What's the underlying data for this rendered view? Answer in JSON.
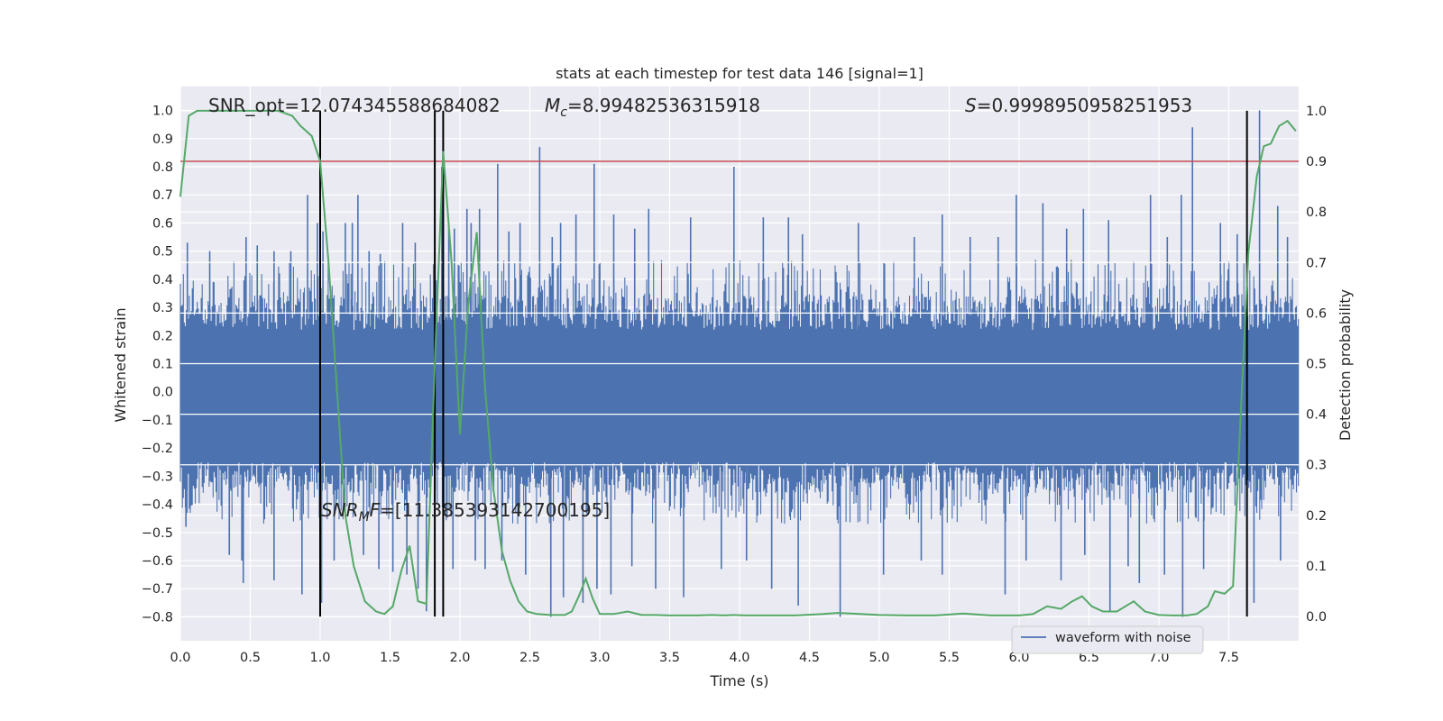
{
  "chart_data": {
    "type": "line",
    "title": "stats at each timestep for test data 146 [signal=1]",
    "xlabel": "Time (s)",
    "ylabel": "Whitened strain",
    "y2label": "Detection probability",
    "xlim": [
      0.0,
      8.0
    ],
    "ylim": [
      -0.885,
      1.085
    ],
    "y2lim": [
      -0.048,
      1.048
    ],
    "xticks": [
      "0.0",
      "0.5",
      "1.0",
      "1.5",
      "2.0",
      "2.5",
      "3.0",
      "3.5",
      "4.0",
      "4.5",
      "5.0",
      "5.5",
      "6.0",
      "6.5",
      "7.0",
      "7.5"
    ],
    "yticks": [
      "1.0",
      "0.9",
      "0.8",
      "0.7",
      "0.6",
      "0.5",
      "0.4",
      "0.3",
      "0.2",
      "0.1",
      "0.0",
      "−0.1",
      "−0.2",
      "−0.3",
      "−0.4",
      "−0.5",
      "−0.6",
      "−0.7",
      "−0.8"
    ],
    "y2ticks": [
      "1.0",
      "0.9",
      "0.8",
      "0.7",
      "0.6",
      "0.5",
      "0.4",
      "0.3",
      "0.2",
      "0.1",
      "0.0"
    ],
    "grid": true,
    "legend_position": "lower-right",
    "legend": [
      "waveform with noise"
    ],
    "annotations": {
      "snr_opt": "SNR_opt=12.074345588684082",
      "mc_symbol": "M",
      "mc_sub": "c",
      "mc_value": "=8.99482536315918",
      "s_symbol": "S",
      "s_value": "=0.9998950958251953",
      "snr_mf_symbol": "SNR",
      "snr_mf_sub": "M",
      "snr_mf_f": "F",
      "snr_mf_value": "=[11.385393142700195]"
    },
    "threshold_y2": 0.9,
    "threshold_color": "#c44e52",
    "vertical_lines_x": [
      1.0,
      1.82,
      1.88,
      7.63
    ],
    "vline_color": "#000000",
    "strain_series": {
      "name": "waveform with noise",
      "color": "#4c72b0",
      "envelope_outer": [
        0.3,
        -0.3
      ],
      "envelope_dense": [
        0.22,
        -0.25
      ],
      "spikes_up": [
        [
          0.05,
          0.53
        ],
        [
          0.21,
          0.5
        ],
        [
          0.47,
          0.55
        ],
        [
          0.55,
          0.52
        ],
        [
          0.67,
          0.5
        ],
        [
          0.79,
          0.5
        ],
        [
          0.91,
          0.7
        ],
        [
          0.98,
          0.6
        ],
        [
          1.02,
          0.57
        ],
        [
          1.18,
          0.6
        ],
        [
          1.23,
          0.6
        ],
        [
          1.27,
          0.7
        ],
        [
          1.35,
          0.5
        ],
        [
          1.43,
          0.49
        ],
        [
          1.59,
          0.6
        ],
        [
          1.68,
          0.53
        ],
        [
          1.87,
          0.8
        ],
        [
          1.92,
          0.6
        ],
        [
          1.96,
          0.58
        ],
        [
          2.05,
          0.65
        ],
        [
          2.08,
          0.6
        ],
        [
          2.14,
          0.65
        ],
        [
          2.27,
          0.81
        ],
        [
          2.35,
          0.57
        ],
        [
          2.43,
          0.6
        ],
        [
          2.57,
          0.87
        ],
        [
          2.66,
          0.55
        ],
        [
          2.72,
          0.6
        ],
        [
          2.83,
          0.63
        ],
        [
          2.96,
          0.81
        ],
        [
          3.1,
          0.63
        ],
        [
          3.25,
          0.58
        ],
        [
          3.35,
          0.65
        ],
        [
          3.65,
          0.62
        ],
        [
          3.96,
          0.8
        ],
        [
          4.17,
          0.62
        ],
        [
          4.35,
          0.62
        ],
        [
          4.45,
          0.56
        ],
        [
          4.85,
          0.6
        ],
        [
          5.25,
          0.55
        ],
        [
          5.45,
          0.63
        ],
        [
          5.65,
          0.55
        ],
        [
          5.85,
          0.55
        ],
        [
          5.98,
          0.7
        ],
        [
          6.17,
          0.67
        ],
        [
          6.34,
          0.58
        ],
        [
          6.46,
          0.65
        ],
        [
          6.64,
          0.61
        ],
        [
          6.94,
          0.7
        ],
        [
          7.06,
          0.55
        ],
        [
          7.16,
          0.7
        ],
        [
          7.24,
          0.94
        ],
        [
          7.44,
          0.6
        ],
        [
          7.56,
          0.56
        ],
        [
          7.72,
          1.0
        ],
        [
          7.85,
          0.66
        ],
        [
          7.92,
          0.55
        ]
      ],
      "spikes_down": [
        [
          0.04,
          -0.48
        ],
        [
          0.35,
          -0.58
        ],
        [
          0.44,
          -0.6
        ],
        [
          0.45,
          -0.68
        ],
        [
          0.67,
          -0.67
        ],
        [
          0.87,
          -0.72
        ],
        [
          1.01,
          -0.75
        ],
        [
          1.1,
          -0.6
        ],
        [
          1.31,
          -0.58
        ],
        [
          1.42,
          -0.63
        ],
        [
          1.52,
          -0.64
        ],
        [
          1.62,
          -0.65
        ],
        [
          1.7,
          -0.7
        ],
        [
          1.76,
          -0.78
        ],
        [
          1.95,
          -0.63
        ],
        [
          2.11,
          -0.6
        ],
        [
          2.18,
          -0.63
        ],
        [
          2.3,
          -0.6
        ],
        [
          2.47,
          -0.65
        ],
        [
          2.65,
          -0.8
        ],
        [
          2.74,
          -0.73
        ],
        [
          2.88,
          -0.75
        ],
        [
          2.98,
          -0.7
        ],
        [
          3.08,
          -0.72
        ],
        [
          3.23,
          -0.62
        ],
        [
          3.4,
          -0.7
        ],
        [
          3.6,
          -0.73
        ],
        [
          3.87,
          -0.63
        ],
        [
          4.05,
          -0.6
        ],
        [
          4.23,
          -0.7
        ],
        [
          4.42,
          -0.76
        ],
        [
          4.72,
          -0.8
        ],
        [
          5.03,
          -0.65
        ],
        [
          5.3,
          -0.6
        ],
        [
          5.45,
          -0.65
        ],
        [
          5.9,
          -0.72
        ],
        [
          6.05,
          -0.6
        ],
        [
          6.3,
          -0.67
        ],
        [
          6.47,
          -0.58
        ],
        [
          6.65,
          -0.78
        ],
        [
          6.78,
          -0.62
        ],
        [
          6.86,
          -0.68
        ],
        [
          7.04,
          -0.65
        ],
        [
          7.17,
          -0.8
        ],
        [
          7.32,
          -0.63
        ],
        [
          7.63,
          -0.78
        ],
        [
          7.68,
          -0.75
        ],
        [
          7.87,
          -0.6
        ]
      ]
    },
    "probability_series": {
      "name": "detection probability",
      "color": "#55a868",
      "x": [
        0.0,
        0.06,
        0.12,
        0.2,
        0.3,
        0.4,
        0.5,
        0.6,
        0.7,
        0.8,
        0.86,
        0.94,
        1.0,
        1.06,
        1.12,
        1.18,
        1.24,
        1.32,
        1.4,
        1.46,
        1.52,
        1.58,
        1.64,
        1.7,
        1.76,
        1.82,
        1.88,
        1.94,
        2.0,
        2.06,
        2.12,
        2.18,
        2.24,
        2.3,
        2.36,
        2.42,
        2.48,
        2.55,
        2.65,
        2.75,
        2.8,
        2.85,
        2.9,
        2.95,
        3.0,
        3.1,
        3.2,
        3.3,
        3.4,
        3.5,
        3.6,
        3.7,
        3.8,
        3.9,
        3.95,
        4.05,
        4.2,
        4.4,
        4.6,
        4.7,
        4.8,
        5.0,
        5.2,
        5.4,
        5.6,
        5.8,
        6.0,
        6.1,
        6.2,
        6.3,
        6.38,
        6.45,
        6.52,
        6.6,
        6.7,
        6.76,
        6.82,
        6.9,
        7.0,
        7.1,
        7.2,
        7.27,
        7.35,
        7.4,
        7.47,
        7.53,
        7.58,
        7.64,
        7.7,
        7.75,
        7.8,
        7.86,
        7.92,
        7.98
      ],
      "y": [
        0.83,
        0.99,
        1.0,
        1.0,
        1.0,
        1.0,
        1.0,
        1.0,
        1.0,
        0.99,
        0.97,
        0.95,
        0.9,
        0.7,
        0.45,
        0.2,
        0.1,
        0.03,
        0.01,
        0.005,
        0.02,
        0.09,
        0.14,
        0.03,
        0.025,
        0.5,
        0.92,
        0.7,
        0.36,
        0.62,
        0.76,
        0.45,
        0.25,
        0.13,
        0.07,
        0.03,
        0.01,
        0.005,
        0.003,
        0.003,
        0.01,
        0.04,
        0.075,
        0.035,
        0.005,
        0.005,
        0.01,
        0.003,
        0.003,
        0.002,
        0.002,
        0.002,
        0.003,
        0.002,
        0.003,
        0.002,
        0.002,
        0.002,
        0.005,
        0.007,
        0.006,
        0.003,
        0.002,
        0.002,
        0.006,
        0.002,
        0.002,
        0.005,
        0.02,
        0.015,
        0.03,
        0.04,
        0.02,
        0.01,
        0.01,
        0.02,
        0.03,
        0.01,
        0.003,
        0.002,
        0.002,
        0.005,
        0.02,
        0.05,
        0.045,
        0.06,
        0.37,
        0.72,
        0.87,
        0.93,
        0.935,
        0.97,
        0.98,
        0.96
      ]
    }
  }
}
